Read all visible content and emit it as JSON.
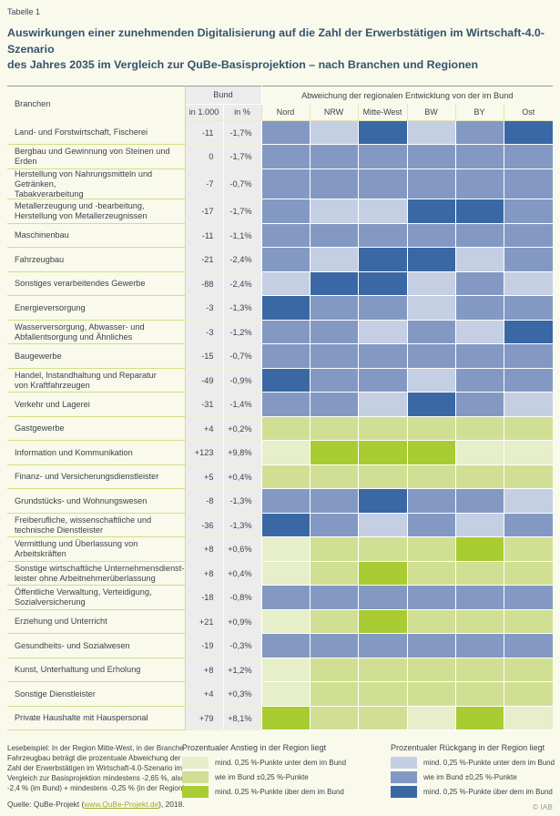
{
  "page": {
    "label": "Tabelle 1",
    "title_lines": [
      "Auswirkungen einer zunehmenden Digitalisierung auf die Zahl der Erwerbstätigen im Wirtschaft-4.0-Szenario",
      "des Jahres 2035 im Vergleich zur QuBe-Basisprojektion – nach Branchen und Regionen"
    ]
  },
  "chart_data": {
    "type": "heatmap",
    "title": "Auswirkungen einer zunehmenden Digitalisierung auf die Zahl der Erwerbstätigen im Wirtschaft-4.0-Szenario des Jahres 2035 im Vergleich zur QuBe-Basisprojektion – nach Branchen und Regionen",
    "columns": {
      "branchen": "Branchen",
      "bund_group": "Bund",
      "bund_sub": [
        "in 1.000",
        "in %"
      ],
      "regions_group": "Abweichung der regionalen Entwicklung von der im Bund"
    },
    "regions": [
      "Nord",
      "NRW",
      "Mitte-West",
      "BW",
      "BY",
      "Ost"
    ],
    "category_legend": {
      "g1": "Anstieg: mind. 0,25 %-Punkte unter dem im Bund",
      "g2": "Anstieg: wie im Bund ±0,25 %-Punkte",
      "g3": "Anstieg: mind. 0,25 %-Punkte über dem im Bund",
      "b1": "Rückgang: mind. 0,25 %-Punkte unter dem im Bund",
      "b2": "Rückgang: wie im Bund ±0,25 %-Punkte",
      "b3": "Rückgang: mind. 0,25 %-Punkte über dem im Bund"
    },
    "rows": [
      {
        "branche": "Land- und Forstwirtschaft, Fischerei",
        "in_1000": "-11",
        "in_pct": "-1,7%",
        "cells": [
          "b2",
          "b1",
          "b3",
          "b1",
          "b2",
          "b3"
        ]
      },
      {
        "branche": "Bergbau und Gewinnung von Steinen und Erden",
        "in_1000": "0",
        "in_pct": "-1,7%",
        "cells": [
          "b2",
          "b2",
          "b2",
          "b2",
          "b2",
          "b2"
        ]
      },
      {
        "branche": "Herstellung von Nahrungsmitteln und Getränken,\nTabakverarbeitung",
        "in_1000": "-7",
        "in_pct": "-0,7%",
        "cells": [
          "b2",
          "b2",
          "b2",
          "b2",
          "b2",
          "b2"
        ]
      },
      {
        "branche": "Metallerzeugung und -bearbeitung,\nHerstellung von Metallerzeugnissen",
        "in_1000": "-17",
        "in_pct": "-1,7%",
        "cells": [
          "b2",
          "b1",
          "b1",
          "b3",
          "b3",
          "b2"
        ]
      },
      {
        "branche": "Maschinenbau",
        "in_1000": "-11",
        "in_pct": "-1,1%",
        "cells": [
          "b2",
          "b2",
          "b2",
          "b2",
          "b2",
          "b2"
        ]
      },
      {
        "branche": "Fahrzeugbau",
        "in_1000": "-21",
        "in_pct": "-2,4%",
        "cells": [
          "b2",
          "b1",
          "b3",
          "b3",
          "b1",
          "b2"
        ]
      },
      {
        "branche": "Sonstiges verarbeitendes Gewerbe",
        "in_1000": "-88",
        "in_pct": "-2,4%",
        "cells": [
          "b1",
          "b3",
          "b3",
          "b1",
          "b2",
          "b1"
        ]
      },
      {
        "branche": "Energieversorgung",
        "in_1000": "-3",
        "in_pct": "-1,3%",
        "cells": [
          "b3",
          "b2",
          "b2",
          "b1",
          "b2",
          "b2"
        ]
      },
      {
        "branche": "Wasserversorgung, Abwasser- und\nAbfallentsorgung und Ähnliches",
        "in_1000": "-3",
        "in_pct": "-1,2%",
        "cells": [
          "b2",
          "b2",
          "b1",
          "b2",
          "b1",
          "b3"
        ]
      },
      {
        "branche": "Baugewerbe",
        "in_1000": "-15",
        "in_pct": "-0,7%",
        "cells": [
          "b2",
          "b2",
          "b2",
          "b2",
          "b2",
          "b2"
        ]
      },
      {
        "branche": "Handel, Instandhaltung und Reparatur\nvon Kraftfahrzeugen",
        "in_1000": "-49",
        "in_pct": "-0,9%",
        "cells": [
          "b3",
          "b2",
          "b2",
          "b1",
          "b2",
          "b2"
        ]
      },
      {
        "branche": "Verkehr und Lagerei",
        "in_1000": "-31",
        "in_pct": "-1,4%",
        "cells": [
          "b2",
          "b2",
          "b1",
          "b3",
          "b2",
          "b1"
        ]
      },
      {
        "branche": "Gastgewerbe",
        "in_1000": "+4",
        "in_pct": "+0,2%",
        "cells": [
          "g2",
          "g2",
          "g2",
          "g2",
          "g2",
          "g2"
        ]
      },
      {
        "branche": "Information und Kommunikation",
        "in_1000": "+123",
        "in_pct": "+9,8%",
        "cells": [
          "g1",
          "g3",
          "g3",
          "g3",
          "g1",
          "g1"
        ]
      },
      {
        "branche": "Finanz- und Versicherungsdienstleister",
        "in_1000": "+5",
        "in_pct": "+0,4%",
        "cells": [
          "g2",
          "g2",
          "g2",
          "g2",
          "g2",
          "g2"
        ]
      },
      {
        "branche": "Grundstücks- und Wohnungswesen",
        "in_1000": "-8",
        "in_pct": "-1,3%",
        "cells": [
          "b2",
          "b2",
          "b3",
          "b2",
          "b2",
          "b1"
        ]
      },
      {
        "branche": "Freiberufliche, wissenschaftliche und\ntechnische Dienstleister",
        "in_1000": "-36",
        "in_pct": "-1,3%",
        "cells": [
          "b3",
          "b2",
          "b1",
          "b2",
          "b1",
          "b2"
        ]
      },
      {
        "branche": "Vermittlung und Überlassung von Arbeitskräften",
        "in_1000": "+8",
        "in_pct": "+0,6%",
        "cells": [
          "g1",
          "g2",
          "g2",
          "g2",
          "g3",
          "g2"
        ]
      },
      {
        "branche": "Sonstige wirtschaftliche Unternehmensdienst-\nleister ohne Arbeitnehmerüberlassung",
        "in_1000": "+8",
        "in_pct": "+0,4%",
        "cells": [
          "g1",
          "g2",
          "g3",
          "g2",
          "g2",
          "g2"
        ]
      },
      {
        "branche": "Öffentliche Verwaltung, Verteidigung,\nSozialversicherung",
        "in_1000": "-18",
        "in_pct": "-0,8%",
        "cells": [
          "b2",
          "b2",
          "b2",
          "b2",
          "b2",
          "b2"
        ]
      },
      {
        "branche": "Erziehung und Unterricht",
        "in_1000": "+21",
        "in_pct": "+0,9%",
        "cells": [
          "g1",
          "g2",
          "g3",
          "g2",
          "g2",
          "g2"
        ]
      },
      {
        "branche": "Gesundheits- und Sozialwesen",
        "in_1000": "-19",
        "in_pct": "-0,3%",
        "cells": [
          "b2",
          "b2",
          "b2",
          "b2",
          "b2",
          "b2"
        ]
      },
      {
        "branche": "Kunst, Unterhaltung und Erholung",
        "in_1000": "+8",
        "in_pct": "+1,2%",
        "cells": [
          "g1",
          "g2",
          "g2",
          "g2",
          "g2",
          "g2"
        ]
      },
      {
        "branche": "Sonstige Dienstleister",
        "in_1000": "+4",
        "in_pct": "+0,3%",
        "cells": [
          "g1",
          "g2",
          "g2",
          "g2",
          "g2",
          "g2"
        ]
      },
      {
        "branche": "Private Haushalte mit Hauspersonal",
        "in_1000": "+79",
        "in_pct": "+8,1%",
        "cells": [
          "g3",
          "g2",
          "g2",
          "g1",
          "g3",
          "g1"
        ]
      }
    ]
  },
  "legend": {
    "anstieg": {
      "title": "Prozentualer Anstieg in der Region liegt",
      "items": [
        {
          "code": "g1",
          "label": "mind. 0,25 %-Punkte unter dem im Bund"
        },
        {
          "code": "g2",
          "label": "wie im Bund ±0,25 %-Punkte"
        },
        {
          "code": "g3",
          "label": "mind. 0,25 %-Punkte über dem im Bund"
        }
      ]
    },
    "rueckgang": {
      "title": "Prozentualer Rückgang in der Region liegt",
      "items": [
        {
          "code": "b1",
          "label": "mind. 0,25 %-Punkte unter dem im Bund"
        },
        {
          "code": "b2",
          "label": "wie im Bund ±0,25 %-Punkte"
        },
        {
          "code": "b3",
          "label": "mind. 0,25 %-Punkte über dem im Bund"
        }
      ]
    }
  },
  "footer": {
    "lesebeispiel": "Lesebeispiel: In der Region Mitte-West, in der Branche Fahrzeugbau beträgt die prozentuale Abweichung der Zahl der Erwerbstätigen im Wirtschaft-4.0-Szenario im Vergleich zur Basisprojektion mindestens -2,65 %, also -2,4 % (im Bund) + mindestens -0,25 % (in der Region).",
    "quelle_prefix": "Quelle: QuBe-Projekt (",
    "quelle_link": "www.QuBe-Projekt.de",
    "quelle_suffix": "), 2018.",
    "copyright": "© IAB"
  },
  "colors": {
    "g1": "#e6eeca",
    "g2": "#d0df93",
    "g3": "#a9cc33",
    "b1": "#c4cfe3",
    "b2": "#8399c3",
    "b3": "#3a68a5",
    "value_cell_bg": "#ececec",
    "page_bg": "#f9f9ec",
    "title_text": "#35536f",
    "separator_olive": "#d6dd82",
    "link_green": "#9cac30"
  }
}
